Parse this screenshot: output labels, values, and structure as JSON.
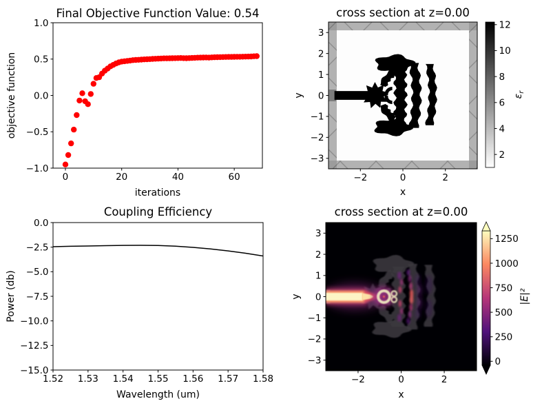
{
  "figure": {
    "background": "#ffffff"
  },
  "chart_data": [
    {
      "id": "objective",
      "type": "scatter",
      "title": "Final Objective Function Value: 0.54",
      "final_value": 0.54,
      "xlabel": "iterations",
      "ylabel": "objective function",
      "marker_color": "#ff0000",
      "xlim": [
        -4.4,
        70.0
      ],
      "ylim": [
        -1.0,
        1.0
      ],
      "xticks": [
        0,
        20,
        40,
        60
      ],
      "xtick_labels": [
        "0",
        "20",
        "40",
        "60"
      ],
      "yticks": [
        -1.0,
        -0.5,
        0.0,
        0.5,
        1.0
      ],
      "ytick_labels": [
        "−1.0",
        "−0.5",
        "0.0",
        "0.5",
        "1.0"
      ],
      "x": [
        0,
        1,
        2,
        3,
        4,
        5,
        6,
        7,
        8,
        9,
        10,
        11,
        12,
        13,
        14,
        15,
        16,
        17,
        18,
        19,
        20,
        21,
        22,
        23,
        24,
        25,
        26,
        27,
        28,
        29,
        30,
        31,
        32,
        33,
        34,
        35,
        36,
        37,
        38,
        39,
        40,
        41,
        42,
        43,
        44,
        45,
        46,
        47,
        48,
        49,
        50,
        51,
        52,
        53,
        54,
        55,
        56,
        57,
        58,
        59,
        60,
        61,
        62,
        63,
        64,
        65,
        66,
        67,
        68
      ],
      "y": [
        -0.95,
        -0.82,
        -0.66,
        -0.47,
        -0.27,
        -0.07,
        0.03,
        -0.08,
        -0.12,
        0.02,
        0.16,
        0.24,
        0.25,
        0.3,
        0.34,
        0.37,
        0.4,
        0.42,
        0.44,
        0.455,
        0.465,
        0.47,
        0.475,
        0.48,
        0.485,
        0.488,
        0.49,
        0.493,
        0.496,
        0.498,
        0.5,
        0.502,
        0.504,
        0.506,
        0.508,
        0.51,
        0.51,
        0.511,
        0.512,
        0.513,
        0.514,
        0.515,
        0.513,
        0.512,
        0.514,
        0.516,
        0.518,
        0.519,
        0.52,
        0.521,
        0.522,
        0.52,
        0.523,
        0.525,
        0.526,
        0.527,
        0.528,
        0.529,
        0.53,
        0.53,
        0.531,
        0.532,
        0.532,
        0.533,
        0.534,
        0.535,
        0.536,
        0.538,
        0.54
      ]
    },
    {
      "id": "epsilon-cross-section",
      "type": "heatmap",
      "title": "cross section at z=0.00",
      "xlabel": "x",
      "ylabel": "y",
      "xlim": [
        -3.5,
        3.5
      ],
      "ylim": [
        -3.5,
        3.5
      ],
      "xticks": [
        -2,
        0,
        2
      ],
      "xtick_labels": [
        "−2",
        "0",
        "2"
      ],
      "yticks": [
        3,
        2,
        1,
        0,
        -1,
        -2,
        -3
      ],
      "ytick_labels": [
        "3",
        "2",
        "1",
        "0",
        "−1",
        "−2",
        "−3"
      ],
      "interior_color": "#fdfdfd",
      "pml_color": "#b2b2b2",
      "pml_hatch_color": "#8d8d8d",
      "source_color": "#7d7d7d",
      "structure_color": "#000000",
      "colorbar": {
        "label_main": "ε",
        "label_sub": "r",
        "ticks": [
          2,
          4,
          6,
          8,
          10,
          12
        ],
        "tick_labels": [
          "2",
          "4",
          "6",
          "8",
          "10",
          "12"
        ],
        "vmin": 1,
        "vmax": 12.2,
        "gradient": [
          {
            "offset": 0,
            "color": "#ffffff"
          },
          {
            "offset": 1,
            "color": "#000000"
          }
        ]
      },
      "structure": [
        {
          "kind": "rect",
          "x": -3.22,
          "y": -0.21,
          "w": 1.72,
          "h": 0.42
        },
        {
          "kind": "star",
          "cx": -1.3,
          "cy": 0.0,
          "r_outer": 0.64,
          "r_inner": 0.4,
          "spikes": 9,
          "rot": 0.2
        },
        {
          "kind": "blob",
          "cx": -0.4,
          "cy": 1.52,
          "rx": 0.88,
          "ry": 0.4,
          "wiggle": 0.15,
          "lobes": 5,
          "seed": 1
        },
        {
          "kind": "blob",
          "cx": -0.48,
          "cy": -1.52,
          "rx": 0.85,
          "ry": 0.38,
          "wiggle": 0.15,
          "lobes": 5,
          "seed": 2
        },
        {
          "kind": "arcband",
          "cx": 0.3,
          "cy": 0.0,
          "r": 1.32,
          "width": 0.34,
          "a0": 122,
          "a1": 160,
          "wiggle": 0.04
        },
        {
          "kind": "arcband",
          "cx": 0.3,
          "cy": 0.0,
          "r": 1.32,
          "width": 0.34,
          "a0": -122,
          "a1": -160,
          "wiggle": 0.04
        },
        {
          "kind": "arcband",
          "cx": -0.5,
          "cy": 0.05,
          "r": 0.28,
          "width": 0.16,
          "a0": 90,
          "a1": 190,
          "wiggle": 0
        },
        {
          "kind": "arcband",
          "cx": -0.5,
          "cy": -0.05,
          "r": 0.28,
          "width": 0.16,
          "a0": -90,
          "a1": -190,
          "wiggle": 0
        },
        {
          "kind": "wavyband",
          "cx": -0.16,
          "half_width": 0.26,
          "y_top": 1.42,
          "y_bottom": -1.42,
          "waves": 6,
          "amp": 0.08,
          "bow": 0.05
        },
        {
          "kind": "wavyband",
          "cx": 0.5,
          "half_width": 0.2,
          "y_top": 1.55,
          "y_bottom": -1.55,
          "waves": 5,
          "amp": 0.06,
          "bow": 0.14
        },
        {
          "kind": "wavyband",
          "cx": 1.24,
          "half_width": 0.17,
          "y_top": 1.5,
          "y_bottom": -1.42,
          "waves": 5,
          "amp": 0.05,
          "bow": 0.16
        }
      ]
    },
    {
      "id": "coupling-efficiency",
      "type": "line",
      "title": "Coupling Efficiency",
      "xlabel": "Wavelength (um)",
      "ylabel": "Power (db)",
      "line_color": "#000000",
      "xlim": [
        1.52,
        1.58
      ],
      "ylim": [
        -15.0,
        0.0
      ],
      "xticks": [
        1.52,
        1.53,
        1.54,
        1.55,
        1.56,
        1.57,
        1.58
      ],
      "xtick_labels": [
        "1.52",
        "1.53",
        "1.54",
        "1.55",
        "1.56",
        "1.57",
        "1.58"
      ],
      "yticks": [
        0.0,
        -2.5,
        -5.0,
        -7.5,
        -10.0,
        -12.5,
        -15.0
      ],
      "ytick_labels": [
        "0.0",
        "−2.5",
        "−5.0",
        "−7.5",
        "−10.0",
        "−12.5",
        "−15.0"
      ],
      "x": [
        1.52,
        1.525,
        1.53,
        1.535,
        1.54,
        1.545,
        1.55,
        1.555,
        1.56,
        1.565,
        1.57,
        1.575,
        1.58
      ],
      "y": [
        -2.45,
        -2.41,
        -2.38,
        -2.35,
        -2.32,
        -2.31,
        -2.33,
        -2.4,
        -2.52,
        -2.68,
        -2.88,
        -3.12,
        -3.4
      ]
    },
    {
      "id": "field-cross-section",
      "type": "heatmap",
      "title": "cross section at z=0.00",
      "xlabel": "x",
      "ylabel": "y",
      "xlim": [
        -3.5,
        3.5
      ],
      "ylim": [
        -3.5,
        3.5
      ],
      "xticks": [
        -2,
        0,
        2
      ],
      "xtick_labels": [
        "−2",
        "0",
        "2"
      ],
      "yticks": [
        3,
        2,
        1,
        0,
        -1,
        -2,
        -3
      ],
      "ytick_labels": [
        "3",
        "2",
        "1",
        "0",
        "−1",
        "−2",
        "−3"
      ],
      "background": "#000004",
      "silhouette_color": "#3a383e",
      "colorbar": {
        "label": "|E|²",
        "ticks": [
          0,
          250,
          500,
          750,
          1000,
          1250
        ],
        "tick_labels": [
          "0",
          "250",
          "500",
          "750",
          "1000",
          "1250"
        ],
        "vmin": -40,
        "vmax": 1330,
        "extend": true,
        "gradient": [
          {
            "offset": 0,
            "color": "#000004"
          },
          {
            "offset": 0.25,
            "color": "#50127b"
          },
          {
            "offset": 0.5,
            "color": "#b63679"
          },
          {
            "offset": 0.75,
            "color": "#fb8861"
          },
          {
            "offset": 1,
            "color": "#fcfdbf"
          }
        ]
      },
      "features": [
        {
          "kind": "rect",
          "x0": -3.5,
          "x1": -3.3,
          "y0": -0.32,
          "y1": 0.32,
          "fill": "#8a8a8a",
          "blur": "xs",
          "op": 0.9
        },
        {
          "kind": "ellipse",
          "cx": -2.15,
          "cy": 0,
          "rx": 1.4,
          "ry": 0.62,
          "fill": "#8c2981",
          "blur": "l",
          "op": 0.5
        },
        {
          "kind": "rect",
          "x0": -3.5,
          "x1": -1.6,
          "y0": -0.38,
          "y1": 0.38,
          "fill": "#c13a70",
          "blur": "m",
          "op": 0.85
        },
        {
          "kind": "poly",
          "pts": [
            [
              -1.75,
              0.3
            ],
            [
              -1.2,
              0.12
            ],
            [
              -0.95,
              0.05
            ],
            [
              -0.95,
              -0.05
            ],
            [
              -1.2,
              -0.12
            ],
            [
              -1.75,
              -0.3
            ]
          ],
          "fill": "#e85362",
          "blur": "s",
          "op": 0.85
        },
        {
          "kind": "rect",
          "x0": -3.5,
          "x1": -1.72,
          "y0": -0.28,
          "y1": 0.28,
          "fill": "#fe9f6d",
          "blur": "s",
          "op": 1
        },
        {
          "kind": "rect",
          "x0": -3.5,
          "x1": -1.8,
          "y0": -0.18,
          "y1": 0.18,
          "fill": "#fdf4c5",
          "blur": "xs",
          "op": 1
        },
        {
          "kind": "poly",
          "pts": [
            [
              -1.8,
              0.17
            ],
            [
              -1.45,
              0.1
            ],
            [
              -1.3,
              0.03
            ],
            [
              -1.3,
              -0.03
            ],
            [
              -1.45,
              -0.1
            ],
            [
              -1.8,
              -0.17
            ]
          ],
          "fill": "#fee8a9",
          "blur": "xs",
          "op": 0.95
        },
        {
          "kind": "ellipse",
          "cx": -0.8,
          "cy": 0,
          "rx": 0.52,
          "ry": 0.48,
          "fill": "#992d80",
          "blur": "m",
          "op": 0.8
        },
        {
          "kind": "ring",
          "cx": -0.8,
          "cy": 0.0,
          "r": 0.27,
          "w": 0.13,
          "stroke": "#eee7c0",
          "blur": "xs",
          "op": 0.95
        },
        {
          "kind": "ellipse",
          "cx": -0.8,
          "cy": 0.0,
          "rx": 0.05,
          "ry": 0.05,
          "fill": "#f26157",
          "blur": "xs",
          "op": 0.9
        },
        {
          "kind": "ring",
          "cx": -0.33,
          "cy": 0.14,
          "r": 0.12,
          "w": 0.08,
          "stroke": "#e4dcb4",
          "blur": "xs",
          "op": 0.9
        },
        {
          "kind": "ring",
          "cx": -0.33,
          "cy": -0.14,
          "r": 0.12,
          "w": 0.08,
          "stroke": "#e4dcb4",
          "blur": "xs",
          "op": 0.9
        },
        {
          "kind": "ellipse",
          "cx": -0.05,
          "cy": 0.33,
          "rx": 0.07,
          "ry": 0.17,
          "fill": "#cf4070",
          "blur": "s",
          "op": 0.85
        },
        {
          "kind": "ellipse",
          "cx": -0.05,
          "cy": -0.33,
          "rx": 0.07,
          "ry": 0.17,
          "fill": "#cf4070",
          "blur": "s",
          "op": 0.85
        },
        {
          "kind": "ellipse",
          "cx": 0.02,
          "cy": 0.68,
          "rx": 0.07,
          "ry": 0.16,
          "fill": "#a33279",
          "blur": "s",
          "op": 0.8
        },
        {
          "kind": "ellipse",
          "cx": 0.02,
          "cy": -0.68,
          "rx": 0.07,
          "ry": 0.16,
          "fill": "#a33279",
          "blur": "s",
          "op": 0.8
        },
        {
          "kind": "ellipse",
          "cx": -0.08,
          "cy": 1.0,
          "rx": 0.09,
          "ry": 0.18,
          "fill": "#73217f",
          "blur": "s",
          "op": 0.75
        },
        {
          "kind": "ellipse",
          "cx": -0.08,
          "cy": -1.0,
          "rx": 0.09,
          "ry": 0.18,
          "fill": "#73217f",
          "blur": "s",
          "op": 0.75
        },
        {
          "kind": "ellipse",
          "cx": 0.48,
          "cy": 0.15,
          "rx": 0.08,
          "ry": 0.2,
          "fill": "#ef5d5e",
          "blur": "s",
          "op": 0.9
        },
        {
          "kind": "ellipse",
          "cx": 0.48,
          "cy": -0.15,
          "rx": 0.08,
          "ry": 0.2,
          "fill": "#ef5d5e",
          "blur": "s",
          "op": 0.9
        },
        {
          "kind": "ellipse",
          "cx": 0.45,
          "cy": 0.5,
          "rx": 0.07,
          "ry": 0.18,
          "fill": "#b73779",
          "blur": "s",
          "op": 0.85
        },
        {
          "kind": "ellipse",
          "cx": 0.45,
          "cy": -0.5,
          "rx": 0.07,
          "ry": 0.18,
          "fill": "#b73779",
          "blur": "s",
          "op": 0.85
        },
        {
          "kind": "ellipse",
          "cx": 0.4,
          "cy": 0.85,
          "rx": 0.07,
          "ry": 0.17,
          "fill": "#8c2981",
          "blur": "s",
          "op": 0.8
        },
        {
          "kind": "ellipse",
          "cx": 0.4,
          "cy": -0.85,
          "rx": 0.07,
          "ry": 0.17,
          "fill": "#8c2981",
          "blur": "s",
          "op": 0.8
        },
        {
          "kind": "ellipse",
          "cx": 0.33,
          "cy": 1.15,
          "rx": 0.08,
          "ry": 0.15,
          "fill": "#5f187f",
          "blur": "s",
          "op": 0.7
        },
        {
          "kind": "ellipse",
          "cx": 0.33,
          "cy": -1.15,
          "rx": 0.08,
          "ry": 0.15,
          "fill": "#5f187f",
          "blur": "s",
          "op": 0.7
        },
        {
          "kind": "ellipse",
          "cx": 0.85,
          "cy": 0.3,
          "rx": 0.08,
          "ry": 0.3,
          "fill": "#6b1e81",
          "blur": "m",
          "op": 0.7
        },
        {
          "kind": "ellipse",
          "cx": 0.85,
          "cy": -0.3,
          "rx": 0.08,
          "ry": 0.3,
          "fill": "#6b1e81",
          "blur": "m",
          "op": 0.7
        },
        {
          "kind": "ellipse",
          "cx": 0.78,
          "cy": 0.8,
          "rx": 0.07,
          "ry": 0.25,
          "fill": "#51127c",
          "blur": "m",
          "op": 0.6
        },
        {
          "kind": "ellipse",
          "cx": 0.78,
          "cy": -0.8,
          "rx": 0.07,
          "ry": 0.25,
          "fill": "#51127c",
          "blur": "m",
          "op": 0.6
        },
        {
          "kind": "ellipse",
          "cx": 1.28,
          "cy": 0.55,
          "rx": 0.1,
          "ry": 0.45,
          "fill": "#3a0f63",
          "blur": "m",
          "op": 0.5
        },
        {
          "kind": "ellipse",
          "cx": 1.28,
          "cy": -0.55,
          "rx": 0.1,
          "ry": 0.45,
          "fill": "#3a0f63",
          "blur": "m",
          "op": 0.5
        }
      ]
    }
  ]
}
